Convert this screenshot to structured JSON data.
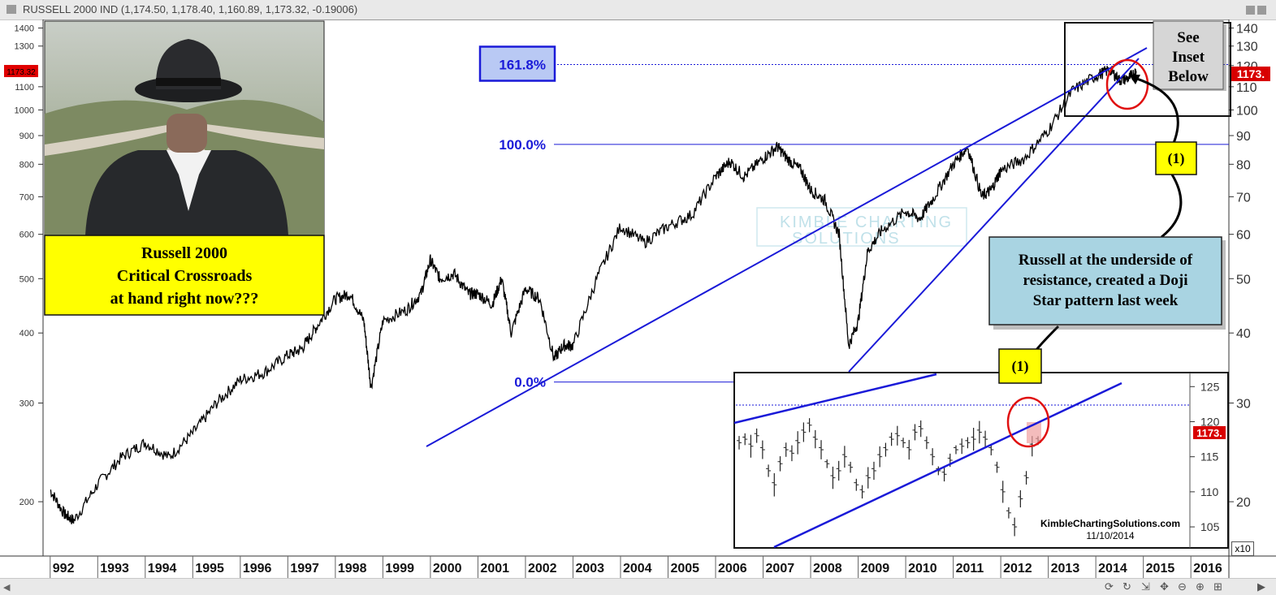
{
  "window": {
    "title": "RUSSELL 2000 IND (1,174.50, 1,178.40, 1,160.89, 1,173.32, -0.19006)"
  },
  "chart_data": {
    "type": "line",
    "scale": "log",
    "x_tick_labels": [
      "992",
      "1993",
      "1994",
      "1995",
      "1996",
      "1997",
      "1998",
      "1999",
      "2000",
      "2001",
      "2002",
      "2003",
      "2004",
      "2005",
      "2006",
      "2007",
      "2008",
      "2009",
      "2010",
      "2011",
      "2012",
      "2013",
      "2014",
      "2015",
      "2016"
    ],
    "left_axis_ticks": [
      "1400",
      "1300",
      "1100",
      "1000",
      "900",
      "800",
      "700",
      "600",
      "500",
      "400",
      "300",
      "200"
    ],
    "right_axis_ticks": [
      "140",
      "130",
      "120",
      "110",
      "100",
      "90",
      "80",
      "70",
      "60",
      "50",
      "40",
      "30",
      "20"
    ],
    "ylim": [
      160,
      1450
    ],
    "last_value_left": "1173.32",
    "last_value_right": "1173.",
    "series": [
      {
        "x": [
          1992.0,
          1992.3,
          1992.5,
          1993.0,
          1993.5,
          1994.0,
          1994.5,
          1995.0,
          1995.5,
          1996.0,
          1996.5,
          1997.0,
          1997.3,
          1997.6,
          1998.0,
          1998.3,
          1998.6,
          1998.75,
          1999.0,
          1999.5,
          1999.8,
          2000.0,
          2000.2,
          2000.5,
          2000.8,
          2001.0,
          2001.3,
          2001.5,
          2001.7,
          2002.0,
          2002.3,
          2002.6,
          2002.8,
          2003.0,
          2003.5,
          2004.0,
          2004.5,
          2005.0,
          2005.5,
          2006.0,
          2006.3,
          2006.6,
          2007.0,
          2007.3,
          2007.5,
          2007.8,
          2008.0,
          2008.3,
          2008.6,
          2008.8,
          2009.0,
          2009.2,
          2009.5,
          2010.0,
          2010.3,
          2010.6,
          2011.0,
          2011.3,
          2011.6,
          2011.8,
          2012.0,
          2012.5,
          2013.0,
          2013.5,
          2014.0,
          2014.3,
          2014.5,
          2014.7,
          2014.85
        ],
        "values": [
          210,
          190,
          185,
          215,
          240,
          255,
          240,
          265,
          300,
          330,
          340,
          365,
          375,
          410,
          460,
          470,
          420,
          320,
          420,
          440,
          470,
          540,
          500,
          510,
          470,
          470,
          450,
          500,
          400,
          480,
          460,
          360,
          380,
          380,
          500,
          620,
          580,
          620,
          650,
          760,
          810,
          760,
          820,
          860,
          820,
          780,
          720,
          690,
          600,
          380,
          420,
          560,
          610,
          660,
          640,
          700,
          800,
          860,
          700,
          720,
          780,
          820,
          920,
          1080,
          1150,
          1180,
          1130,
          1140,
          1173
        ]
      }
    ],
    "fib_levels": [
      {
        "label": "161.8%",
        "value": 1205
      },
      {
        "label": "100.0%",
        "value": 868
      },
      {
        "label": "0.0%",
        "value": 327
      }
    ],
    "inset": {
      "ticks": [
        "125",
        "120",
        "115",
        "110",
        "105"
      ],
      "ylim": [
        102,
        127
      ],
      "last_value": "1173.",
      "values": [
        117,
        117.5,
        116.5,
        118,
        116,
        113,
        111,
        114,
        116,
        115.5,
        117,
        118.5,
        119.5,
        117.5,
        116,
        114,
        112,
        113,
        115,
        113.5,
        111,
        110,
        112,
        113,
        115,
        116,
        117.5,
        118,
        117,
        116,
        118.5,
        119,
        117,
        115,
        113,
        112.5,
        114.5,
        116,
        116.5,
        117,
        117.5,
        118.5,
        117.5,
        116,
        113.5,
        110,
        107,
        105,
        109,
        112,
        116.5,
        117.3
      ]
    },
    "annotations": {
      "photo_caption_lines": [
        "Russell 2000",
        "Critical Crossroads",
        "at hand right now???"
      ],
      "see_inset_lines": [
        "See",
        "Inset",
        "Below"
      ],
      "marker_label": "(1)",
      "note_lines": [
        "Russell at the underside of",
        "resistance, created a Doji",
        "Star pattern last week"
      ],
      "watermark_lines": [
        "KIMBLE CHARTING",
        "SOLUTIONS"
      ],
      "credit": "KimbleChartingSolutions.com",
      "date": "11/10/2014",
      "scale_label": "x10"
    }
  },
  "colors": {
    "trend": "#1a1ad8",
    "price": "#000000",
    "note_fill": "#a9d4e2",
    "caption_fill": "#ffff00",
    "circle": "#e01010",
    "fib_box": "#b9c9f4"
  }
}
